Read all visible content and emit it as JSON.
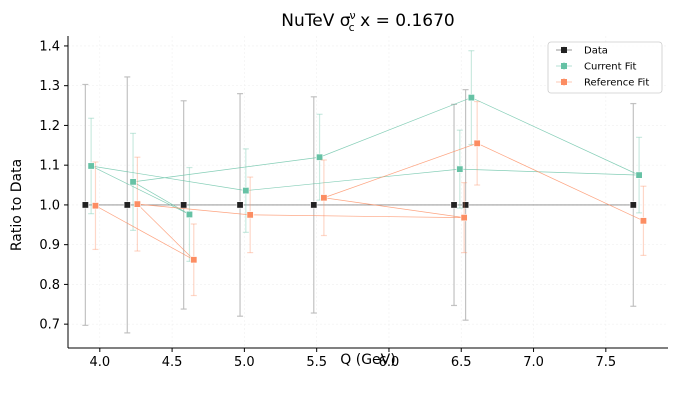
{
  "chart_data": {
    "type": "scatter",
    "title": {
      "prefix": "NuTeV σ",
      "superscript": "ν",
      "subscript": "c",
      "suffix": " x = 0.1670"
    },
    "xlabel": "Q (GeV)",
    "ylabel": "Ratio to Data",
    "xlim": [
      3.78,
      7.93
    ],
    "ylim": [
      0.64,
      1.425
    ],
    "xticks": [
      4.0,
      4.5,
      5.0,
      5.5,
      6.0,
      6.5,
      7.0,
      7.5
    ],
    "xtick_labels": [
      "4.0",
      "4.5",
      "5.0",
      "5.5",
      "6.0",
      "6.5",
      "7.0",
      "7.5"
    ],
    "yticks": [
      0.7,
      0.8,
      0.9,
      1.0,
      1.1,
      1.2,
      1.3,
      1.4
    ],
    "ytick_labels": [
      "0.7",
      "0.8",
      "0.9",
      "1.0",
      "1.1",
      "1.2",
      "1.3",
      "1.4"
    ],
    "grid": true,
    "legend_position": "top-right",
    "series": [
      {
        "name": "Data",
        "color": "#222222",
        "errcolor": "#bbbbbb",
        "x": [
          3.9,
          4.19,
          4.58,
          4.97,
          5.48,
          6.45,
          6.53,
          7.69
        ],
        "y": [
          1.0,
          1.0,
          1.0,
          1.0,
          1.0,
          1.0,
          1.0,
          1.0
        ],
        "yerr": [
          0.303,
          0.322,
          0.262,
          0.28,
          0.272,
          0.253,
          0.29,
          0.255
        ],
        "connect_order": [
          0,
          1,
          2,
          3,
          4,
          5,
          6,
          7
        ]
      },
      {
        "name": "Current Fit",
        "color": "#66c2a5",
        "errcolor": "#66c2a5",
        "x": [
          3.94,
          4.23,
          4.62,
          5.01,
          5.52,
          6.49,
          6.57,
          7.73
        ],
        "y": [
          1.098,
          1.058,
          0.976,
          1.036,
          1.12,
          1.09,
          1.27,
          1.075
        ],
        "yerr": [
          0.12,
          0.122,
          0.118,
          0.105,
          0.108,
          0.098,
          0.118,
          0.095
        ],
        "connect_order": [
          0,
          2,
          1,
          4,
          6,
          7,
          5,
          3,
          0
        ]
      },
      {
        "name": "Reference Fit",
        "color": "#fc8d62",
        "errcolor": "#fc8d62",
        "x": [
          3.97,
          4.26,
          4.65,
          5.04,
          5.55,
          6.52,
          6.61,
          7.76
        ],
        "y": [
          0.998,
          1.002,
          0.862,
          0.975,
          1.018,
          0.968,
          1.155,
          0.96
        ],
        "yerr": [
          0.11,
          0.118,
          0.09,
          0.095,
          0.095,
          0.088,
          0.105,
          0.087
        ],
        "connect_order": [
          0,
          2,
          1,
          3,
          5,
          4,
          6,
          7
        ]
      }
    ]
  }
}
